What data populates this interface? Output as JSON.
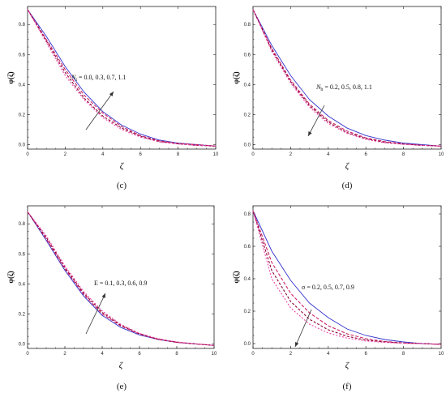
{
  "chart_data": [
    {
      "panel": "(c)",
      "type": "line",
      "ylabel": "φ(ζ)",
      "xlabel": "ζ",
      "xlim": [
        0,
        10
      ],
      "ylim": [
        -0.03,
        0.92
      ],
      "xticks": [
        "0",
        "2",
        "4",
        "6",
        "8",
        "10"
      ],
      "yticks": [
        "0.0",
        "0.2",
        "0.4",
        "0.6",
        "0.8"
      ],
      "annotation": "N_t = 0.0, 0.3, 0.7, 1.1",
      "arrow_direction": "up",
      "series": [
        {
          "color": "#3333cc",
          "dash": "",
          "values": [
            [
              0,
              0.9
            ],
            [
              1,
              0.72
            ],
            [
              2,
              0.52
            ],
            [
              3,
              0.35
            ],
            [
              4,
              0.22
            ],
            [
              5,
              0.13
            ],
            [
              6,
              0.07
            ],
            [
              7,
              0.03
            ],
            [
              8,
              0.01
            ],
            [
              9,
              0.0
            ],
            [
              10,
              -0.01
            ]
          ]
        },
        {
          "color": "#cc2266",
          "dash": "4,2",
          "values": [
            [
              0,
              0.9
            ],
            [
              1,
              0.7
            ],
            [
              2,
              0.5
            ],
            [
              3,
              0.33
            ],
            [
              4,
              0.21
            ],
            [
              5,
              0.12
            ],
            [
              6,
              0.06
            ],
            [
              7,
              0.025
            ],
            [
              8,
              0.008
            ],
            [
              9,
              0.0
            ],
            [
              10,
              -0.01
            ]
          ]
        },
        {
          "color": "#880033",
          "dash": "3,2",
          "values": [
            [
              0,
              0.9
            ],
            [
              1,
              0.69
            ],
            [
              2,
              0.48
            ],
            [
              3,
              0.31
            ],
            [
              4,
              0.19
            ],
            [
              5,
              0.11
            ],
            [
              6,
              0.055
            ],
            [
              7,
              0.02
            ],
            [
              8,
              0.005
            ],
            [
              9,
              -0.005
            ],
            [
              10,
              -0.01
            ]
          ]
        },
        {
          "color": "#ee44aa",
          "dash": "2,2",
          "values": [
            [
              0,
              0.9
            ],
            [
              1,
              0.68
            ],
            [
              2,
              0.46
            ],
            [
              3,
              0.3
            ],
            [
              4,
              0.18
            ],
            [
              5,
              0.1
            ],
            [
              6,
              0.05
            ],
            [
              7,
              0.018
            ],
            [
              8,
              0.004
            ],
            [
              9,
              -0.005
            ],
            [
              10,
              -0.01
            ]
          ]
        }
      ]
    },
    {
      "panel": "(d)",
      "type": "line",
      "ylabel": "φ(ζ)",
      "xlabel": "ζ",
      "xlim": [
        0,
        10
      ],
      "ylim": [
        -0.03,
        0.92
      ],
      "xticks": [
        "0",
        "2",
        "4",
        "6",
        "8",
        "10"
      ],
      "yticks": [
        "0.0",
        "0.2",
        "0.4",
        "0.6",
        "0.8"
      ],
      "annotation": "N_b = 0.2, 0.5, 0.8, 1.1",
      "arrow_direction": "down",
      "series": [
        {
          "color": "#3333cc",
          "dash": "",
          "values": [
            [
              0,
              0.9
            ],
            [
              1,
              0.66
            ],
            [
              2,
              0.46
            ],
            [
              3,
              0.3
            ],
            [
              4,
              0.19
            ],
            [
              5,
              0.11
            ],
            [
              6,
              0.06
            ],
            [
              7,
              0.03
            ],
            [
              8,
              0.01
            ],
            [
              9,
              0.0
            ],
            [
              10,
              -0.01
            ]
          ]
        },
        {
          "color": "#cc2266",
          "dash": "4,2",
          "values": [
            [
              0,
              0.9
            ],
            [
              1,
              0.64
            ],
            [
              2,
              0.43
            ],
            [
              3,
              0.27
            ],
            [
              4,
              0.16
            ],
            [
              5,
              0.09
            ],
            [
              6,
              0.045
            ],
            [
              7,
              0.02
            ],
            [
              8,
              0.005
            ],
            [
              9,
              -0.005
            ],
            [
              10,
              -0.01
            ]
          ]
        },
        {
          "color": "#880033",
          "dash": "3,2",
          "values": [
            [
              0,
              0.9
            ],
            [
              1,
              0.63
            ],
            [
              2,
              0.42
            ],
            [
              3,
              0.26
            ],
            [
              4,
              0.15
            ],
            [
              5,
              0.08
            ],
            [
              6,
              0.04
            ],
            [
              7,
              0.015
            ],
            [
              8,
              0.003
            ],
            [
              9,
              -0.005
            ],
            [
              10,
              -0.01
            ]
          ]
        },
        {
          "color": "#ee44aa",
          "dash": "2,2",
          "values": [
            [
              0,
              0.9
            ],
            [
              1,
              0.62
            ],
            [
              2,
              0.41
            ],
            [
              3,
              0.25
            ],
            [
              4,
              0.14
            ],
            [
              5,
              0.075
            ],
            [
              6,
              0.035
            ],
            [
              7,
              0.012
            ],
            [
              8,
              0.002
            ],
            [
              9,
              -0.005
            ],
            [
              10,
              -0.01
            ]
          ]
        }
      ]
    },
    {
      "panel": "(e)",
      "type": "line",
      "ylabel": "φ(ζ)",
      "xlabel": "ζ",
      "xlim": [
        0,
        10
      ],
      "ylim": [
        -0.03,
        0.92
      ],
      "xticks": [
        "0",
        "2",
        "4",
        "6",
        "8",
        "10"
      ],
      "yticks": [
        "0.0",
        "0.2",
        "0.4",
        "0.6",
        "0.8"
      ],
      "annotation": "E = 0.1, 0.3, 0.6, 0.9",
      "arrow_direction": "up",
      "series": [
        {
          "color": "#3333cc",
          "dash": "",
          "values": [
            [
              0,
              0.88
            ],
            [
              1,
              0.69
            ],
            [
              2,
              0.49
            ],
            [
              3,
              0.32
            ],
            [
              4,
              0.19
            ],
            [
              5,
              0.11
            ],
            [
              6,
              0.06
            ],
            [
              7,
              0.03
            ],
            [
              8,
              0.01
            ],
            [
              9,
              0.0
            ],
            [
              10,
              -0.01
            ]
          ]
        },
        {
          "color": "#cc2266",
          "dash": "4,2",
          "values": [
            [
              0,
              0.88
            ],
            [
              1,
              0.7
            ],
            [
              2,
              0.5
            ],
            [
              3,
              0.33
            ],
            [
              4,
              0.2
            ],
            [
              5,
              0.12
            ],
            [
              6,
              0.065
            ],
            [
              7,
              0.03
            ],
            [
              8,
              0.01
            ],
            [
              9,
              0.0
            ],
            [
              10,
              -0.01
            ]
          ]
        },
        {
          "color": "#880033",
          "dash": "3,2",
          "values": [
            [
              0,
              0.88
            ],
            [
              1,
              0.71
            ],
            [
              2,
              0.51
            ],
            [
              3,
              0.34
            ],
            [
              4,
              0.21
            ],
            [
              5,
              0.125
            ],
            [
              6,
              0.068
            ],
            [
              7,
              0.032
            ],
            [
              8,
              0.012
            ],
            [
              9,
              0.0
            ],
            [
              10,
              -0.01
            ]
          ]
        },
        {
          "color": "#ee44aa",
          "dash": "2,2",
          "values": [
            [
              0,
              0.88
            ],
            [
              1,
              0.72
            ],
            [
              2,
              0.52
            ],
            [
              3,
              0.35
            ],
            [
              4,
              0.22
            ],
            [
              5,
              0.13
            ],
            [
              6,
              0.07
            ],
            [
              7,
              0.035
            ],
            [
              8,
              0.013
            ],
            [
              9,
              0.001
            ],
            [
              10,
              -0.01
            ]
          ]
        }
      ]
    },
    {
      "panel": "(f)",
      "type": "line",
      "ylabel": "φ(ζ)",
      "xlabel": "ζ",
      "xlim": [
        0,
        10
      ],
      "ylim": [
        -0.03,
        0.85
      ],
      "xticks": [
        "0",
        "2",
        "4",
        "6",
        "8",
        "10"
      ],
      "yticks": [
        "0.0",
        "0.2",
        "0.4",
        "0.6",
        "0.8"
      ],
      "annotation": "σ = 0.2, 0.5, 0.7, 0.9",
      "arrow_direction": "down",
      "series": [
        {
          "color": "#3333cc",
          "dash": "",
          "values": [
            [
              0,
              0.82
            ],
            [
              1,
              0.57
            ],
            [
              2,
              0.39
            ],
            [
              3,
              0.25
            ],
            [
              4,
              0.16
            ],
            [
              5,
              0.09
            ],
            [
              6,
              0.05
            ],
            [
              7,
              0.025
            ],
            [
              8,
              0.01
            ],
            [
              9,
              0.0
            ],
            [
              10,
              -0.005
            ]
          ]
        },
        {
          "color": "#cc2266",
          "dash": "4,2",
          "values": [
            [
              0,
              0.82
            ],
            [
              1,
              0.5
            ],
            [
              2,
              0.31
            ],
            [
              3,
              0.19
            ],
            [
              4,
              0.11
            ],
            [
              5,
              0.06
            ],
            [
              6,
              0.03
            ],
            [
              7,
              0.013
            ],
            [
              8,
              0.004
            ],
            [
              9,
              0.0
            ],
            [
              10,
              -0.005
            ]
          ]
        },
        {
          "color": "#880033",
          "dash": "3,2",
          "values": [
            [
              0,
              0.82
            ],
            [
              1,
              0.45
            ],
            [
              2,
              0.26
            ],
            [
              3,
              0.15
            ],
            [
              4,
              0.085
            ],
            [
              5,
              0.045
            ],
            [
              6,
              0.022
            ],
            [
              7,
              0.01
            ],
            [
              8,
              0.003
            ],
            [
              9,
              0.0
            ],
            [
              10,
              -0.005
            ]
          ]
        },
        {
          "color": "#ee44aa",
          "dash": "2,2",
          "values": [
            [
              0,
              0.82
            ],
            [
              1,
              0.4
            ],
            [
              2,
              0.22
            ],
            [
              3,
              0.12
            ],
            [
              4,
              0.065
            ],
            [
              5,
              0.034
            ],
            [
              6,
              0.016
            ],
            [
              7,
              0.007
            ],
            [
              8,
              0.002
            ],
            [
              9,
              0.0
            ],
            [
              10,
              -0.005
            ]
          ]
        }
      ]
    }
  ]
}
